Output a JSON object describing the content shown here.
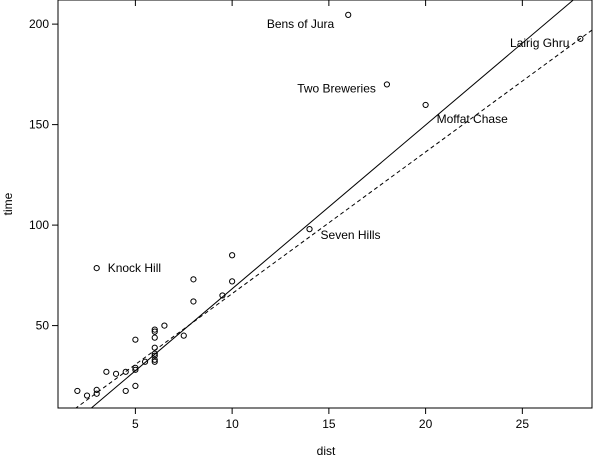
{
  "chart_data": {
    "type": "scatter",
    "title": "",
    "xlabel": "dist",
    "ylabel": "time",
    "xlim": [
      1.0,
      28.6
    ],
    "ylim": [
      9,
      212
    ],
    "x_ticks": [
      5,
      10,
      15,
      20,
      25
    ],
    "y_ticks": [
      50,
      100,
      150,
      200
    ],
    "grid": false,
    "points": [
      {
        "x": 2.0,
        "y": 17.5
      },
      {
        "x": 2.5,
        "y": 15.2
      },
      {
        "x": 3.0,
        "y": 16.1
      },
      {
        "x": 3.0,
        "y": 18.0
      },
      {
        "x": 3.0,
        "y": 78.6,
        "label": "Knock Hill"
      },
      {
        "x": 3.5,
        "y": 27.0
      },
      {
        "x": 4.0,
        "y": 26.0
      },
      {
        "x": 4.5,
        "y": 27.0
      },
      {
        "x": 4.5,
        "y": 17.5
      },
      {
        "x": 5.0,
        "y": 28.0
      },
      {
        "x": 5.0,
        "y": 29.0
      },
      {
        "x": 5.0,
        "y": 20.0
      },
      {
        "x": 5.0,
        "y": 43.0
      },
      {
        "x": 5.5,
        "y": 32.0
      },
      {
        "x": 6.0,
        "y": 32.0
      },
      {
        "x": 6.0,
        "y": 33.0
      },
      {
        "x": 6.0,
        "y": 35.0
      },
      {
        "x": 6.0,
        "y": 36.0
      },
      {
        "x": 6.0,
        "y": 39.0
      },
      {
        "x": 6.0,
        "y": 44.0
      },
      {
        "x": 6.0,
        "y": 47.0
      },
      {
        "x": 6.0,
        "y": 48.0
      },
      {
        "x": 6.5,
        "y": 50.0
      },
      {
        "x": 7.5,
        "y": 45.0
      },
      {
        "x": 8.0,
        "y": 62.0
      },
      {
        "x": 8.0,
        "y": 73.0
      },
      {
        "x": 9.5,
        "y": 65.0
      },
      {
        "x": 10.0,
        "y": 72.0
      },
      {
        "x": 10.0,
        "y": 85.0
      },
      {
        "x": 14.0,
        "y": 98.0,
        "label": "Seven Hills"
      },
      {
        "x": 16.0,
        "y": 204.6,
        "label": "Bens of Jura"
      },
      {
        "x": 18.0,
        "y": 170.0,
        "label": "Two Breweries"
      },
      {
        "x": 20.0,
        "y": 159.8,
        "label": "Moffat Chase"
      },
      {
        "x": 28.0,
        "y": 192.7,
        "label": "Lairig Ghru"
      }
    ],
    "lines": [
      {
        "style": "solid",
        "intercept": -13.2,
        "slope": 8.15
      },
      {
        "style": "dashed",
        "intercept": -4.6,
        "slope": 7.05
      }
    ]
  }
}
